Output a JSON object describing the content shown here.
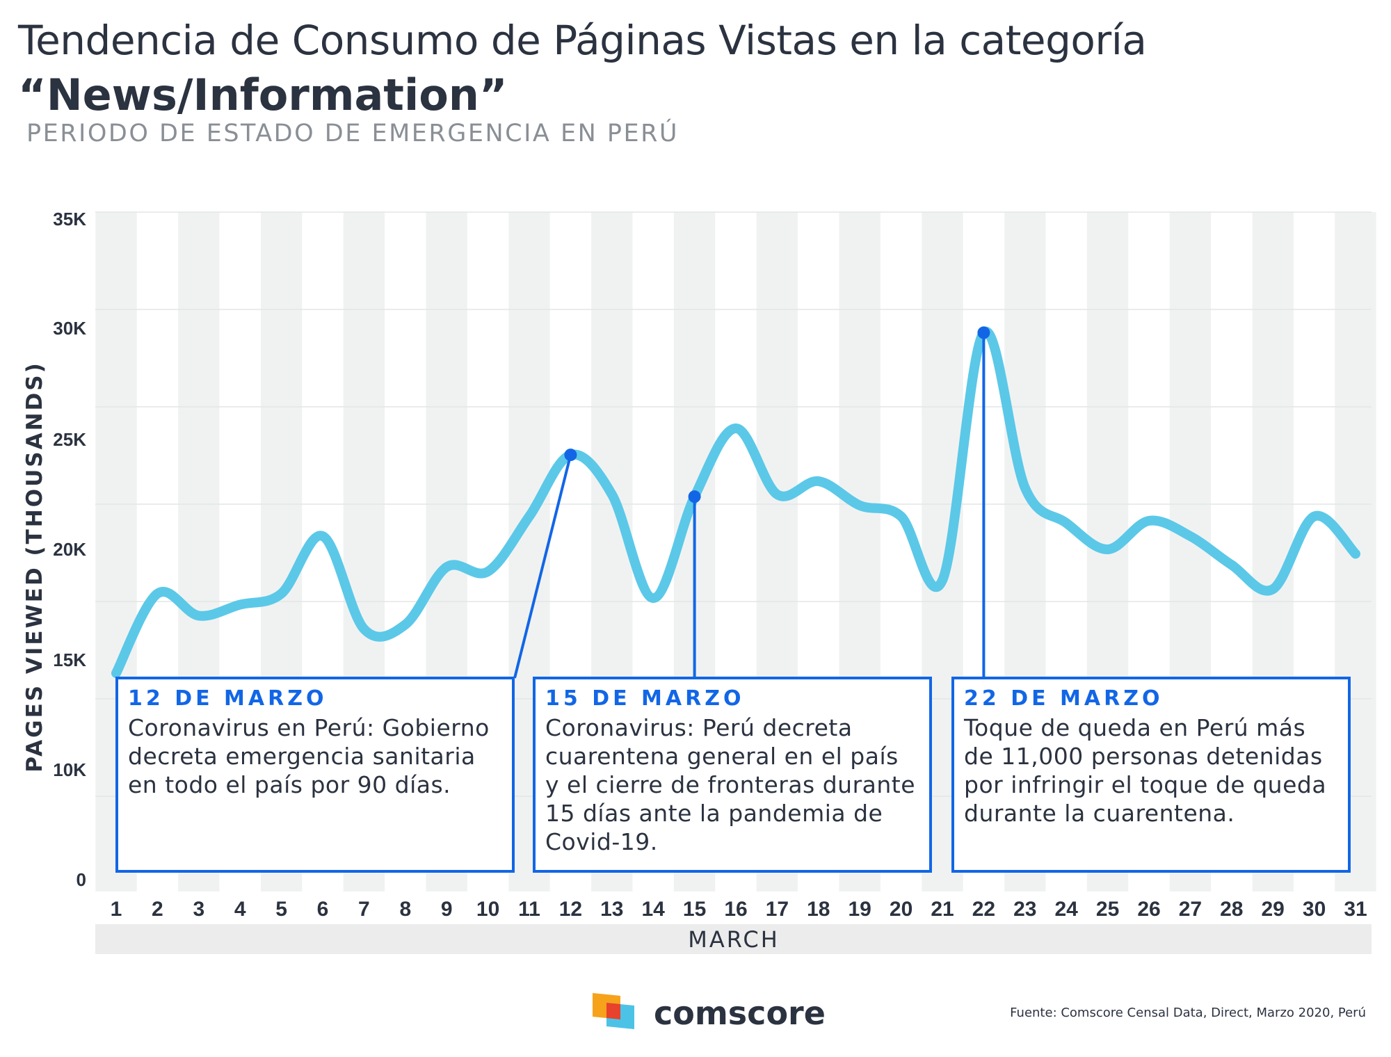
{
  "title_line1": "Tendencia de Consumo de Páginas Vistas en la categoría",
  "title_line2": "“News/Information”",
  "subtitle": "PERIODO DE ESTADO DE EMERGENCIA EN PERÚ",
  "source": "Fuente: Comscore Censal Data, Direct, Marzo 2020, Perú",
  "brand": "comscore",
  "colors": {
    "line": "#5bc8e8",
    "accent": "#1266e6",
    "stripe": "#f0f2f2",
    "text": "#2b3240"
  },
  "chart_data": {
    "type": "line",
    "xlabel": "MARCH",
    "ylabel": "PAGES VIEWED (THOUSANDS)",
    "ylim": [
      0,
      35000
    ],
    "yticks": [
      0,
      10000,
      15000,
      20000,
      25000,
      30000,
      35000
    ],
    "ytick_labels": [
      "0",
      "10K",
      "15K",
      "20K",
      "25K",
      "30K",
      "35K"
    ],
    "x": [
      1,
      2,
      3,
      4,
      5,
      6,
      7,
      8,
      9,
      10,
      11,
      12,
      13,
      14,
      15,
      16,
      17,
      18,
      19,
      20,
      21,
      22,
      23,
      24,
      25,
      26,
      27,
      28,
      29,
      30,
      31
    ],
    "series": [
      {
        "values": [
          14400,
          18000,
          17000,
          17500,
          18000,
          20600,
          16400,
          16600,
          19200,
          19000,
          21500,
          24300,
          22500,
          17800,
          22400,
          25500,
          22500,
          23100,
          22000,
          21500,
          18600,
          29800,
          22800,
          21200,
          20000,
          21300,
          20600,
          19300,
          18200,
          21500,
          19800
        ]
      }
    ],
    "grid": true,
    "annotations": [
      {
        "x": 12,
        "date": "12 DE MARZO",
        "text": "Coronavirus en Perú: Gobierno decreta emergencia sanitaria en todo el país por 90 días."
      },
      {
        "x": 15,
        "date": "15 DE MARZO",
        "text": "Coronavirus: Perú decreta cuarentena general en el país y el cierre de fronteras durante 15 días ante la pandemia de Covid-19."
      },
      {
        "x": 22,
        "date": "22 DE MARZO",
        "text": "Toque de queda en Perú más de 11,000 personas detenidas por infringir el toque de queda durante la cuarentena."
      }
    ]
  }
}
